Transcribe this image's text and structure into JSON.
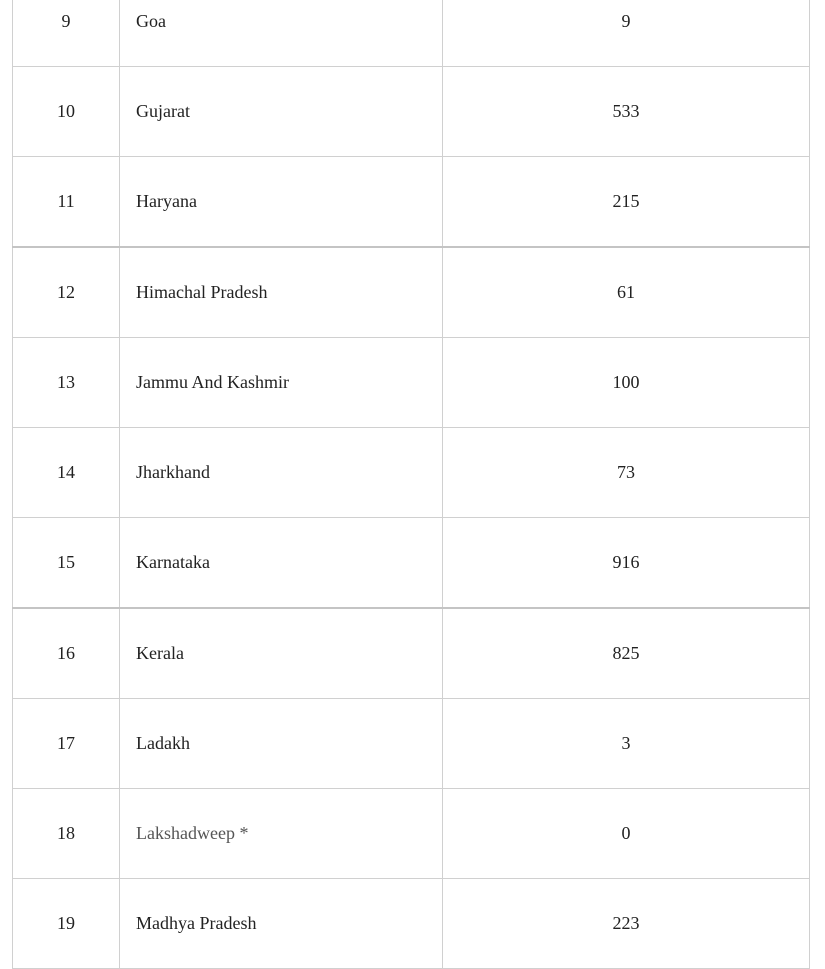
{
  "table": {
    "rows": [
      {
        "sno": "9",
        "state": "Goa",
        "count": "9"
      },
      {
        "sno": "10",
        "state": "Gujarat",
        "count": "533"
      },
      {
        "sno": "11",
        "state": "Haryana",
        "count": "215"
      },
      {
        "sno": "12",
        "state": "Himachal Pradesh",
        "count": "61"
      },
      {
        "sno": "13",
        "state": "Jammu And Kashmir",
        "count": "100"
      },
      {
        "sno": "14",
        "state": "Jharkhand",
        "count": "73"
      },
      {
        "sno": "15",
        "state": "Karnataka",
        "count": "916"
      },
      {
        "sno": "16",
        "state": "Kerala",
        "count": "825"
      },
      {
        "sno": "17",
        "state": "Ladakh",
        "count": "3"
      },
      {
        "sno": "18",
        "state": "Lakshadweep *",
        "count": "0"
      },
      {
        "sno": "19",
        "state": "Madhya Pradesh",
        "count": "223"
      }
    ]
  }
}
